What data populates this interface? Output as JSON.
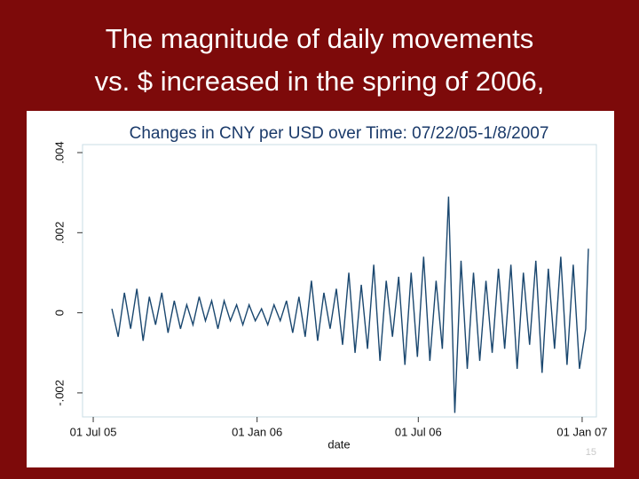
{
  "slide": {
    "title_lines": [
      "The magnitude of daily movements",
      "vs. $ increased in the spring of 2006,"
    ],
    "page_number": "15"
  },
  "chart_data": {
    "type": "line",
    "title": "Changes in CNY per USD over Time: 07/22/05-1/8/2007",
    "x_label": "date",
    "x": [
      "2005-07-22",
      "2005-07-29",
      "2005-08-05",
      "2005-08-12",
      "2005-08-19",
      "2005-08-26",
      "2005-09-02",
      "2005-09-09",
      "2005-09-16",
      "2005-09-23",
      "2005-09-30",
      "2005-10-07",
      "2005-10-14",
      "2005-10-21",
      "2005-10-28",
      "2005-11-04",
      "2005-11-11",
      "2005-11-18",
      "2005-11-25",
      "2005-12-02",
      "2005-12-09",
      "2005-12-16",
      "2005-12-23",
      "2005-12-30",
      "2006-01-06",
      "2006-01-13",
      "2006-01-20",
      "2006-01-27",
      "2006-02-03",
      "2006-02-10",
      "2006-02-17",
      "2006-02-24",
      "2006-03-03",
      "2006-03-10",
      "2006-03-17",
      "2006-03-24",
      "2006-03-31",
      "2006-04-07",
      "2006-04-14",
      "2006-04-21",
      "2006-04-28",
      "2006-05-05",
      "2006-05-12",
      "2006-05-19",
      "2006-05-26",
      "2006-06-02",
      "2006-06-09",
      "2006-06-16",
      "2006-06-23",
      "2006-06-30",
      "2006-07-07",
      "2006-07-14",
      "2006-07-21",
      "2006-07-28",
      "2006-08-04",
      "2006-08-11",
      "2006-08-18",
      "2006-08-25",
      "2006-09-01",
      "2006-09-08",
      "2006-09-15",
      "2006-09-22",
      "2006-09-29",
      "2006-10-06",
      "2006-10-13",
      "2006-10-20",
      "2006-10-27",
      "2006-11-03",
      "2006-11-10",
      "2006-11-17",
      "2006-11-24",
      "2006-12-01",
      "2006-12-08",
      "2006-12-15",
      "2006-12-22",
      "2006-12-29",
      "2007-01-05",
      "2007-01-08"
    ],
    "series": [
      {
        "color": "#1a476f",
        "values": [
          0.0001,
          -0.0006,
          0.0005,
          -0.0004,
          0.0006,
          -0.0007,
          0.0004,
          -0.0003,
          0.0005,
          -0.0005,
          0.0003,
          -0.0004,
          0.0002,
          -0.0003,
          0.0004,
          -0.0002,
          0.0003,
          -0.0004,
          0.0003,
          -0.0002,
          0.0002,
          -0.0003,
          0.0002,
          -0.0002,
          0.0001,
          -0.0003,
          0.0002,
          -0.0002,
          0.0003,
          -0.0005,
          0.0004,
          -0.0006,
          0.0008,
          -0.0007,
          0.0005,
          -0.0004,
          0.0006,
          -0.0008,
          0.001,
          -0.001,
          0.0007,
          -0.0009,
          0.0012,
          -0.0012,
          0.0008,
          -0.0006,
          0.0009,
          -0.0013,
          0.001,
          -0.0011,
          0.0014,
          -0.0012,
          0.0008,
          -0.0009,
          0.0029,
          -0.0025,
          0.0013,
          -0.0014,
          0.001,
          -0.0012,
          0.0008,
          -0.001,
          0.0011,
          -0.0009,
          0.0012,
          -0.0014,
          0.001,
          -0.0008,
          0.0013,
          -0.0015,
          0.0011,
          -0.0009,
          0.0014,
          -0.0013,
          0.0012,
          -0.0014,
          -0.0004,
          0.0016
        ]
      }
    ],
    "xlim": [
      "2005-06-19",
      "2007-01-17"
    ],
    "xticks": [
      {
        "value": "2005-07-01",
        "label": "01 Jul 05"
      },
      {
        "value": "2006-01-01",
        "label": "01 Jan 06"
      },
      {
        "value": "2006-07-01",
        "label": "01 Jul 06"
      },
      {
        "value": "2007-01-01",
        "label": "01 Jan 07"
      }
    ],
    "ylim": [
      -0.0026,
      0.0042
    ],
    "yticks": [
      {
        "value": -0.002,
        "label": "-.002"
      },
      0,
      {
        "value": 0.002,
        "label": ".002"
      },
      {
        "value": 0.004,
        "label": ".004"
      }
    ],
    "grid": false
  }
}
